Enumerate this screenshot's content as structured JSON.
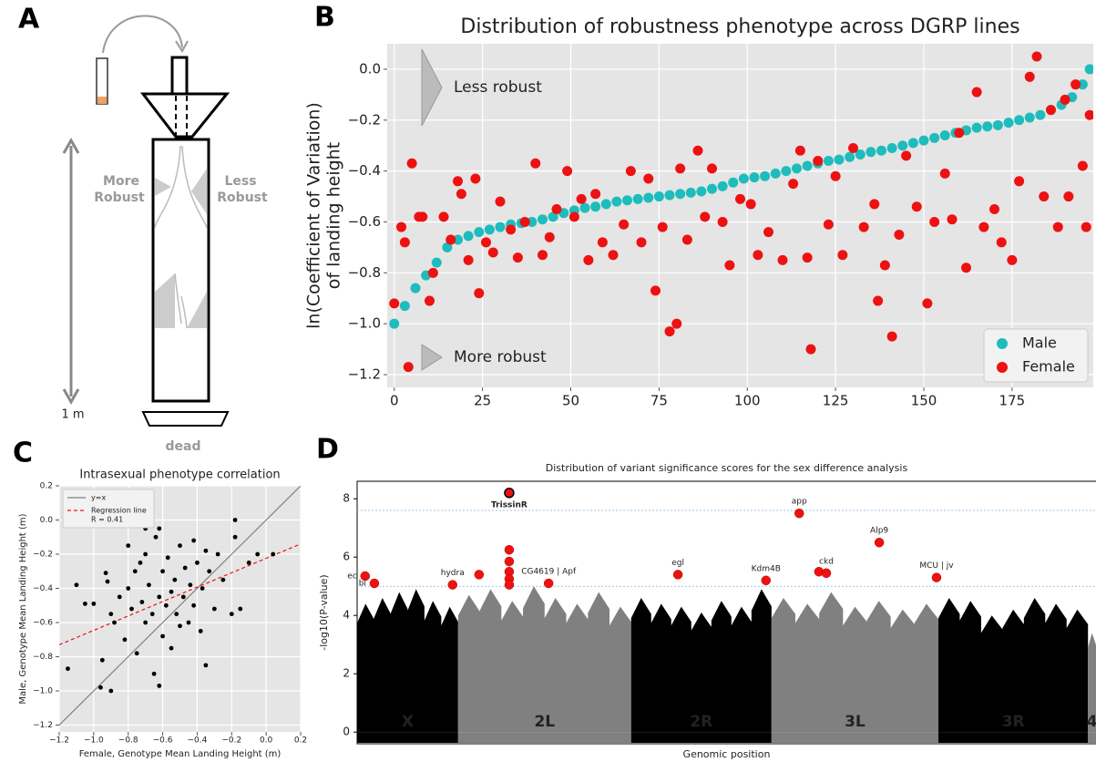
{
  "panels": [
    "A",
    "B",
    "C",
    "D"
  ],
  "diagram": {
    "left_label": [
      "More",
      "Robust"
    ],
    "right_label": [
      "Less",
      "Robust"
    ],
    "height": "1 m",
    "bottom": "dead"
  },
  "chart_data": [
    {
      "type": "scatter",
      "title": "Distribution of robustness phenotype across DGRP lines",
      "y_label": [
        "ln(Coefficient of Variation)",
        "of landing height"
      ],
      "annotations": [
        "Less robust",
        "More robust"
      ],
      "xlim": [
        -2,
        198
      ],
      "ylim": [
        -1.25,
        0.1
      ],
      "xticks": [
        0,
        25,
        50,
        75,
        100,
        125,
        150,
        175
      ],
      "yticks": [
        {
          "value": 0,
          "label": "0.0"
        },
        {
          "value": -0.2,
          "label": "−0.2"
        },
        {
          "value": -0.4,
          "label": "−0.4"
        },
        {
          "value": -0.6,
          "label": "−0.6"
        },
        {
          "value": -0.8,
          "label": "−0.8"
        },
        {
          "value": -1,
          "label": "−1.0"
        },
        {
          "value": -1.2,
          "label": "−1.2"
        }
      ],
      "grid": true,
      "legend": "lower right",
      "series": [
        {
          "name": "Male",
          "color": "#1ebcbc",
          "x": [
            0,
            3,
            6,
            9,
            12,
            15,
            18,
            21,
            24,
            27,
            30,
            33,
            36,
            39,
            42,
            45,
            48,
            51,
            54,
            57,
            60,
            63,
            66,
            69,
            72,
            75,
            78,
            81,
            84,
            87,
            90,
            93,
            96,
            99,
            102,
            105,
            108,
            111,
            114,
            117,
            120,
            123,
            126,
            129,
            132,
            135,
            138,
            141,
            144,
            147,
            150,
            153,
            156,
            159,
            162,
            165,
            168,
            171,
            174,
            177,
            180,
            183,
            186,
            189,
            192,
            195,
            197
          ],
          "values": [
            -1.0,
            -0.93,
            -0.86,
            -0.81,
            -0.76,
            -0.7,
            -0.67,
            -0.655,
            -0.64,
            -0.63,
            -0.62,
            -0.61,
            -0.605,
            -0.6,
            -0.59,
            -0.58,
            -0.565,
            -0.555,
            -0.545,
            -0.54,
            -0.53,
            -0.52,
            -0.515,
            -0.51,
            -0.505,
            -0.5,
            -0.495,
            -0.49,
            -0.485,
            -0.48,
            -0.47,
            -0.46,
            -0.445,
            -0.43,
            -0.425,
            -0.42,
            -0.41,
            -0.4,
            -0.39,
            -0.38,
            -0.37,
            -0.36,
            -0.355,
            -0.345,
            -0.335,
            -0.325,
            -0.32,
            -0.31,
            -0.3,
            -0.29,
            -0.28,
            -0.27,
            -0.26,
            -0.25,
            -0.24,
            -0.23,
            -0.225,
            -0.22,
            -0.21,
            -0.2,
            -0.19,
            -0.18,
            -0.16,
            -0.14,
            -0.11,
            -0.06,
            0.0
          ]
        },
        {
          "name": "Female",
          "color": "#ee1111",
          "x": [
            0,
            2,
            3,
            4,
            5,
            7,
            8,
            10,
            11,
            14,
            16,
            18,
            19,
            21,
            23,
            24,
            26,
            28,
            30,
            33,
            35,
            37,
            40,
            42,
            44,
            46,
            49,
            51,
            53,
            55,
            57,
            59,
            62,
            65,
            67,
            70,
            72,
            74,
            76,
            78,
            80,
            81,
            83,
            86,
            88,
            90,
            93,
            95,
            98,
            101,
            103,
            106,
            110,
            113,
            115,
            117,
            118,
            120,
            123,
            125,
            127,
            130,
            133,
            136,
            137,
            139,
            141,
            143,
            145,
            148,
            151,
            153,
            156,
            158,
            160,
            162,
            165,
            167,
            170,
            172,
            175,
            177,
            180,
            182,
            184,
            186,
            188,
            190,
            191,
            193,
            195,
            196,
            197
          ],
          "values": [
            -0.92,
            -0.62,
            -0.68,
            -1.17,
            -0.37,
            -0.58,
            -0.58,
            -0.91,
            -0.8,
            -0.58,
            -0.67,
            -0.44,
            -0.49,
            -0.75,
            -0.43,
            -0.88,
            -0.68,
            -0.72,
            -0.52,
            -0.63,
            -0.74,
            -0.6,
            -0.37,
            -0.73,
            -0.66,
            -0.55,
            -0.4,
            -0.58,
            -0.51,
            -0.75,
            -0.49,
            -0.68,
            -0.73,
            -0.61,
            -0.4,
            -0.68,
            -0.43,
            -0.87,
            -0.62,
            -1.03,
            -1.0,
            -0.39,
            -0.67,
            -0.32,
            -0.58,
            -0.39,
            -0.6,
            -0.77,
            -0.51,
            -0.53,
            -0.73,
            -0.64,
            -0.75,
            -0.45,
            -0.32,
            -0.74,
            -1.1,
            -0.36,
            -0.61,
            -0.42,
            -0.73,
            -0.31,
            -0.62,
            -0.53,
            -0.91,
            -0.77,
            -1.05,
            -0.65,
            -0.34,
            -0.54,
            -0.92,
            -0.6,
            -0.41,
            -0.59,
            -0.25,
            -0.78,
            -0.09,
            -0.62,
            -0.55,
            -0.68,
            -0.75,
            -0.44,
            -0.03,
            0.05,
            -0.5,
            -0.16,
            -0.62,
            -0.12,
            -0.5,
            -0.06,
            -0.38,
            -0.62,
            -0.18
          ]
        }
      ]
    },
    {
      "type": "scatter",
      "title": "Intrasexual phenotype correlation",
      "x_label": "Female, Genotype Mean Landing Height (m)",
      "y_label": "Male, Genotype Mean  Landing Height (m)",
      "xlim": [
        -1.2,
        0.2
      ],
      "ylim": [
        -1.24,
        0.2
      ],
      "xticks": [
        {
          "value": -1.2,
          "label": "−1.2"
        },
        {
          "value": -1,
          "label": "−1.0"
        },
        {
          "value": -0.8,
          "label": "−0.8"
        },
        {
          "value": -0.6,
          "label": "−0.6"
        },
        {
          "value": -0.4,
          "label": "−0.4"
        },
        {
          "value": -0.2,
          "label": "−0.2"
        },
        {
          "value": 0,
          "label": "0.0"
        },
        0.2
      ],
      "yticks": [
        0.2,
        {
          "value": 0,
          "label": "0.0"
        },
        {
          "value": -0.2,
          "label": "−0.2"
        },
        {
          "value": -0.4,
          "label": "−0.4"
        },
        {
          "value": -0.6,
          "label": "−0.6"
        },
        {
          "value": -0.8,
          "label": "−0.8"
        },
        {
          "value": -1,
          "label": "−1.0"
        },
        {
          "value": -1.2,
          "label": "−1.2"
        }
      ],
      "grid": true,
      "legend": "upper left",
      "legend_note": "R = 0.41",
      "lines": [
        {
          "name": "y=x",
          "color": "#808080",
          "dashed": false,
          "x": [
            -1.2,
            0.2
          ],
          "values": [
            -1.2,
            0.2
          ]
        },
        {
          "name": "Regression line",
          "color": "#ee1111",
          "dashed": true,
          "x": [
            -1.2,
            0.2
          ],
          "values": [
            -0.73,
            -0.14
          ]
        }
      ],
      "points": {
        "color": "#000000",
        "x": [
          -1.15,
          -1.1,
          -1.05,
          -1.0,
          -0.96,
          -0.95,
          -0.93,
          -0.92,
          -0.9,
          -0.88,
          -0.85,
          -0.82,
          -0.8,
          -0.8,
          -0.78,
          -0.76,
          -0.75,
          -0.73,
          -0.72,
          -0.7,
          -0.7,
          -0.68,
          -0.66,
          -0.65,
          -0.64,
          -0.62,
          -0.62,
          -0.6,
          -0.6,
          -0.58,
          -0.57,
          -0.55,
          -0.55,
          -0.53,
          -0.52,
          -0.5,
          -0.5,
          -0.48,
          -0.47,
          -0.45,
          -0.44,
          -0.42,
          -0.42,
          -0.4,
          -0.38,
          -0.37,
          -0.35,
          -0.35,
          -0.33,
          -0.3,
          -0.28,
          -0.25,
          -0.2,
          -0.18,
          -0.18,
          -0.15,
          -0.1,
          -0.05,
          0.04,
          -0.9,
          -0.62,
          -0.7
        ],
        "values": [
          -0.87,
          -0.38,
          -0.49,
          -0.49,
          -0.98,
          -0.82,
          -0.31,
          -0.36,
          -0.55,
          -0.6,
          -0.45,
          -0.7,
          -0.4,
          -0.15,
          -0.52,
          -0.3,
          -0.78,
          -0.25,
          -0.48,
          -0.6,
          -0.2,
          -0.38,
          -0.55,
          -0.9,
          -0.1,
          -0.45,
          -0.05,
          -0.3,
          -0.68,
          -0.5,
          -0.22,
          -0.42,
          -0.75,
          -0.35,
          -0.55,
          -0.15,
          -0.62,
          -0.45,
          -0.28,
          -0.6,
          -0.38,
          -0.12,
          -0.5,
          -0.25,
          -0.65,
          -0.4,
          -0.85,
          -0.18,
          -0.3,
          -0.52,
          -0.2,
          -0.35,
          -0.55,
          0.0,
          -0.1,
          -0.52,
          -0.25,
          -0.2,
          -0.2,
          -1.0,
          -0.97,
          -0.05
        ]
      }
    },
    {
      "type": "manhattan",
      "title": "Distribution of variant significance scores for the sex difference analysis",
      "x_label": "Genomic position",
      "y_label": "-log10(P-value)",
      "xlim": [
        0,
        120
      ],
      "ylim": [
        -0.4,
        8.6
      ],
      "yticks": [
        0,
        2,
        4,
        6,
        8
      ],
      "thresholds": [
        7.6,
        5.0
      ],
      "threshold_color": "#9cc3e6",
      "chromosomes": [
        {
          "name": "X",
          "start": 0,
          "end": 16.4,
          "color": "#000000",
          "envelope": [
            4.4,
            4.6,
            4.8,
            4.9,
            4.5,
            4.3
          ]
        },
        {
          "name": "2L",
          "start": 16.4,
          "end": 44.5,
          "color": "#808080",
          "envelope": [
            4.7,
            4.9,
            4.5,
            5.0,
            4.6,
            4.4,
            4.8,
            4.3
          ]
        },
        {
          "name": "2R",
          "start": 44.5,
          "end": 67.3,
          "color": "#000000",
          "envelope": [
            4.6,
            4.4,
            4.3,
            4.1,
            4.5,
            4.3,
            4.9
          ]
        },
        {
          "name": "3L",
          "start": 67.3,
          "end": 94.4,
          "color": "#808080",
          "envelope": [
            4.6,
            4.4,
            4.8,
            4.3,
            4.5,
            4.2,
            4.4
          ]
        },
        {
          "name": "3R",
          "start": 94.4,
          "end": 118.7,
          "color": "#000000",
          "envelope": [
            4.6,
            4.5,
            4.0,
            4.2,
            4.6,
            4.4,
            4.2
          ]
        },
        {
          "name": "4",
          "start": 118.7,
          "end": 120,
          "color": "#808080",
          "envelope": [
            3.4
          ]
        }
      ],
      "highlight_color": "#ee1111",
      "hits": [
        {
          "label": "ec",
          "x": 1.3,
          "y": 5.35
        },
        {
          "label": "bi",
          "x": 2.8,
          "y": 5.1
        },
        {
          "label": "hydra",
          "x": 15.5,
          "y": 5.05
        },
        {
          "label": null,
          "x": 19.8,
          "y": 5.4
        },
        {
          "label": "TrissinR",
          "x": 24.7,
          "y": 8.2
        },
        {
          "label": null,
          "x": 24.7,
          "y": 6.25
        },
        {
          "label": null,
          "x": 24.7,
          "y": 5.85
        },
        {
          "label": null,
          "x": 24.7,
          "y": 5.5
        },
        {
          "label": null,
          "x": 24.7,
          "y": 5.25
        },
        {
          "label": null,
          "x": 24.7,
          "y": 5.05
        },
        {
          "label": "CG4619 | Apf",
          "x": 31.1,
          "y": 5.1
        },
        {
          "label": "egl",
          "x": 52.1,
          "y": 5.4
        },
        {
          "label": "Kdm4B",
          "x": 66.4,
          "y": 5.2
        },
        {
          "label": "app",
          "x": 71.8,
          "y": 7.5
        },
        {
          "label": null,
          "x": 75.0,
          "y": 5.5
        },
        {
          "label": "ckd",
          "x": 76.2,
          "y": 5.45
        },
        {
          "label": "Alp9",
          "x": 84.8,
          "y": 6.5
        },
        {
          "label": "MCU | jv",
          "x": 94.1,
          "y": 5.3
        }
      ]
    }
  ]
}
